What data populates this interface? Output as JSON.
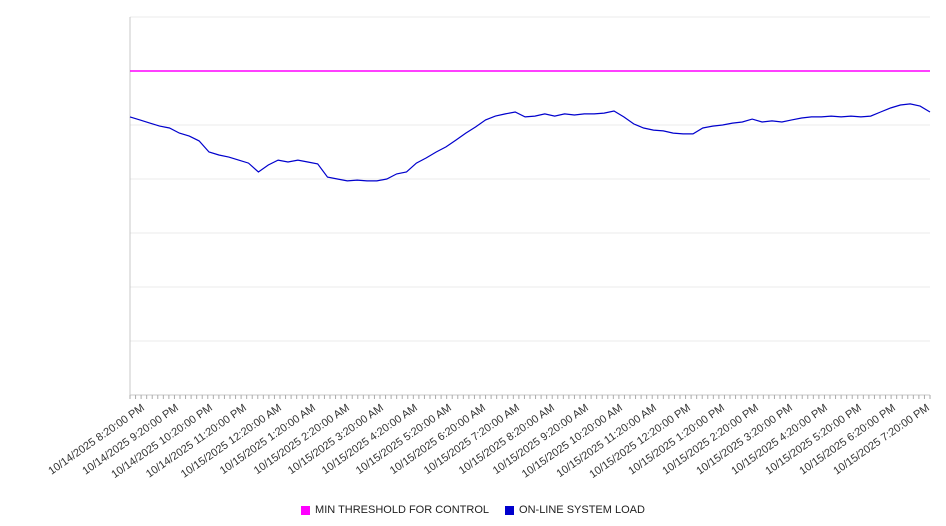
{
  "chart_data": {
    "type": "line",
    "title": "",
    "xlabel": "",
    "ylabel": "",
    "ylim": [
      0,
      140
    ],
    "grid_step": 20,
    "grid": true,
    "legend_position": "bottom",
    "x_labels": [
      "10/14/2025 8:20:00 PM",
      "10/14/2025 9:20:00 PM",
      "10/14/2025 10:20:00 PM",
      "10/14/2025 11:20:00 PM",
      "10/15/2025 12:20:00 AM",
      "10/15/2025 1:20:00 AM",
      "10/15/2025 2:20:00 AM",
      "10/15/2025 3:20:00 AM",
      "10/15/2025 4:20:00 AM",
      "10/15/2025 5:20:00 AM",
      "10/15/2025 6:20:00 AM",
      "10/15/2025 7:20:00 AM",
      "10/15/2025 8:20:00 AM",
      "10/15/2025 9:20:00 AM",
      "10/15/2025 10:20:00 AM",
      "10/15/2025 11:20:00 AM",
      "10/15/2025 12:20:00 PM",
      "10/15/2025 1:20:00 PM",
      "10/15/2025 2:20:00 PM",
      "10/15/2025 3:20:00 PM",
      "10/15/2025 4:20:00 PM",
      "10/15/2025 5:20:00 PM",
      "10/15/2025 6:20:00 PM",
      "10/15/2025 7:20:00 PM"
    ],
    "series": [
      {
        "name": "MIN THRESHOLD FOR CONTROL",
        "type": "threshold",
        "color": "#ff00ff",
        "value": 120
      },
      {
        "name": "ON-LINE SYSTEM LOAD",
        "type": "line",
        "color": "#0000cd",
        "values": [
          103.0,
          101.9,
          100.7,
          99.6,
          98.9,
          97.0,
          95.9,
          94.1,
          90.0,
          88.9,
          88.1,
          87.0,
          85.9,
          82.6,
          85.2,
          87.0,
          86.3,
          87.0,
          86.3,
          85.6,
          80.7,
          80.0,
          79.3,
          79.6,
          79.3,
          79.3,
          80.0,
          81.9,
          82.6,
          85.9,
          87.8,
          90.0,
          91.9,
          94.4,
          97.0,
          99.3,
          101.9,
          103.3,
          104.1,
          104.8,
          103.0,
          103.3,
          104.1,
          103.3,
          104.1,
          103.7,
          104.1,
          104.1,
          104.4,
          105.2,
          103.0,
          100.4,
          98.9,
          98.1,
          97.8,
          97.0,
          96.7,
          96.7,
          98.9,
          99.6,
          100.0,
          100.7,
          101.1,
          102.2,
          101.1,
          101.5,
          101.1,
          101.9,
          102.6,
          103.0,
          103.0,
          103.3,
          103.0,
          103.3,
          103.0,
          103.3,
          104.8,
          106.3,
          107.4,
          107.8,
          107.0,
          104.8
        ]
      }
    ]
  },
  "colors": {
    "grid": "#ebebeb",
    "axis": "#c8c8c8",
    "tick": "#aaaaaa",
    "label_text": "#333333",
    "legend_text": "#222222",
    "background": "#ffffff"
  }
}
